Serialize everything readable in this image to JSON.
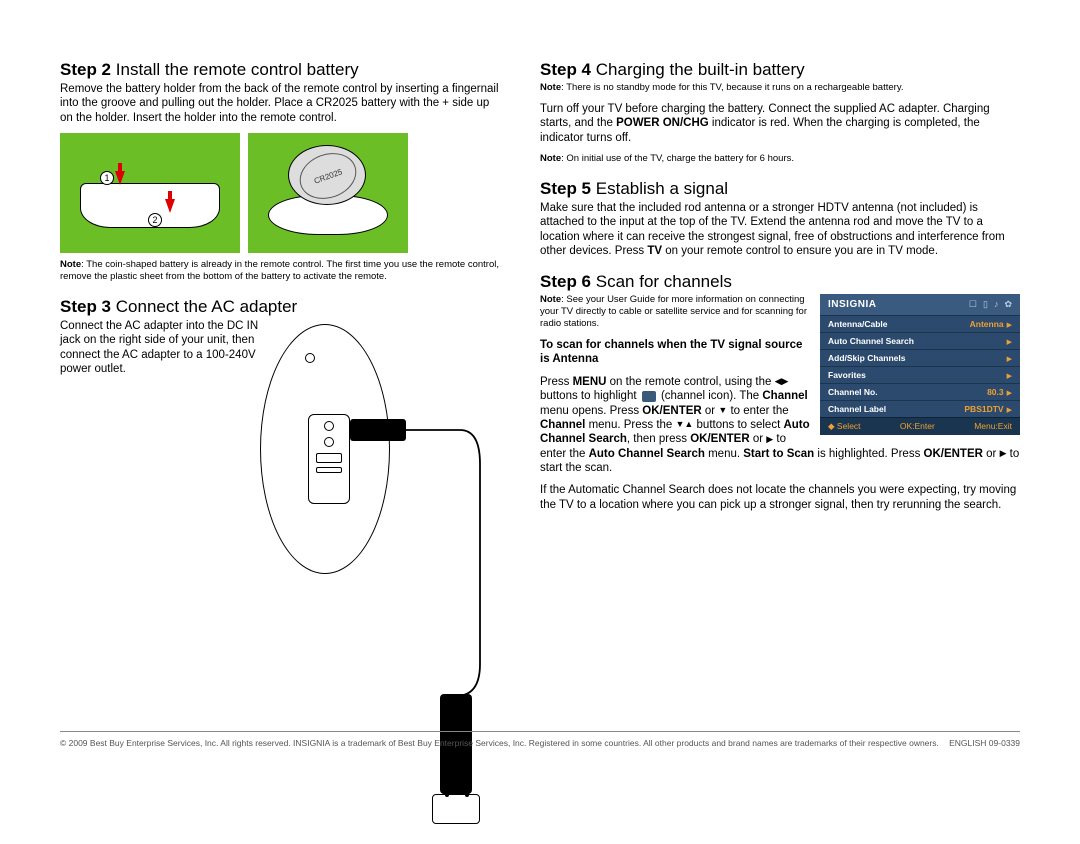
{
  "step2": {
    "num": "Step 2",
    "title": "Install the remote control battery",
    "body": "Remove the battery holder from the back of the remote control by inserting a fingernail into the groove and pulling out the holder. Place a CR2025 battery with the + side up on the holder. Insert the holder into the remote control.",
    "note_label": "Note",
    "note": ": The coin-shaped battery is already in the remote control. The first time you use the remote control, remove the plastic sheet from the bottom of the battery to activate the remote.",
    "battery_label": "CR2025",
    "num1": "1",
    "num2": "2",
    "illus_bg": "#6cbe27"
  },
  "step3": {
    "num": "Step 3",
    "title": "Connect the AC adapter",
    "body": "Connect the AC adapter into the DC IN jack on the right side of your unit, then connect the AC adapter to a 100-240V power outlet."
  },
  "step4": {
    "num": "Step 4",
    "title": "Charging the built-in battery",
    "note1_label": "Note",
    "note1": ": There is no standby mode for this TV, because it runs on a rechargeable battery.",
    "body_a": "Turn off your TV before charging the battery. Connect the supplied AC adapter. Charging starts, and the ",
    "power": "POWER ON/CHG",
    "body_b": " indicator is red. When the charging is completed, the indicator turns off.",
    "note2_label": "Note",
    "note2": ": On initial use of the TV, charge the battery for 6 hours."
  },
  "step5": {
    "num": "Step 5",
    "title": "Establish a signal",
    "body_a": "Make sure that the included rod antenna or a stronger HDTV antenna (not included) is attached to the input at the top of the TV. Extend the antenna rod and move the TV to a location where it can receive the strongest signal, free of obstructions and interference from other devices. Press ",
    "tv": "TV",
    "body_b": " on your remote control to ensure you are in TV mode."
  },
  "step6": {
    "num": "Step 6",
    "title": "Scan for channels",
    "note_label": "Note",
    "note": ": See your User Guide for more information on connecting your TV directly to cable or satellite service and for scanning for radio stations.",
    "subhead": "To scan for channels when the TV signal source is Antenna",
    "p1a": "Press ",
    "menu": "MENU",
    "p1b": " on the remote control, using the ",
    "p1c": " buttons to highlight ",
    "p1d": " (channel icon). The ",
    "ch": "Channel",
    "p1e": " menu opens. Press ",
    "okenter": "OK/ENTER",
    "p1f": " or ",
    "p1g": " to enter the ",
    "p1h": " menu. Press the ",
    "p1i": " buttons to select ",
    "acs": "Auto Channel Search",
    "p1j": ", then press ",
    "p1k": " or ",
    "p1l": " to enter the ",
    "p1m": " menu. ",
    "sts": "Start to Scan",
    "p1n": " is highlighted. Press ",
    "p1o": " or ",
    "p1p": " to start the scan.",
    "p2": "If the Automatic Channel Search does not locate the channels you were expecting, try moving the TV to a location where you can pick up a stronger signal, then try rerunning the search.",
    "menu_ui": {
      "logo": "INSIGNIA",
      "bg": "#2b4a6e",
      "header_bg": "#3a5a80",
      "accent": "#f0a030",
      "rows": [
        {
          "label": "Antenna/Cable",
          "value": "Antenna"
        },
        {
          "label": "Auto Channel Search",
          "value": ""
        },
        {
          "label": "Add/Skip Channels",
          "value": ""
        },
        {
          "label": "Favorites",
          "value": ""
        },
        {
          "label": "Channel No.",
          "value": "80.3"
        },
        {
          "label": "Channel Label",
          "value": "PBS1DTV"
        }
      ],
      "footer": {
        "select": "Select",
        "ok": "OK:Enter",
        "exit": "Menu:Exit"
      }
    }
  },
  "footer": {
    "copyright": "© 2009 Best Buy Enterprise Services, Inc. All rights reserved. INSIGNIA is a trademark of Best Buy Enterprise Services, Inc. Registered in some countries. All other products and brand names are trademarks of their respective owners.",
    "lang": "ENGLISH 09-0339"
  }
}
